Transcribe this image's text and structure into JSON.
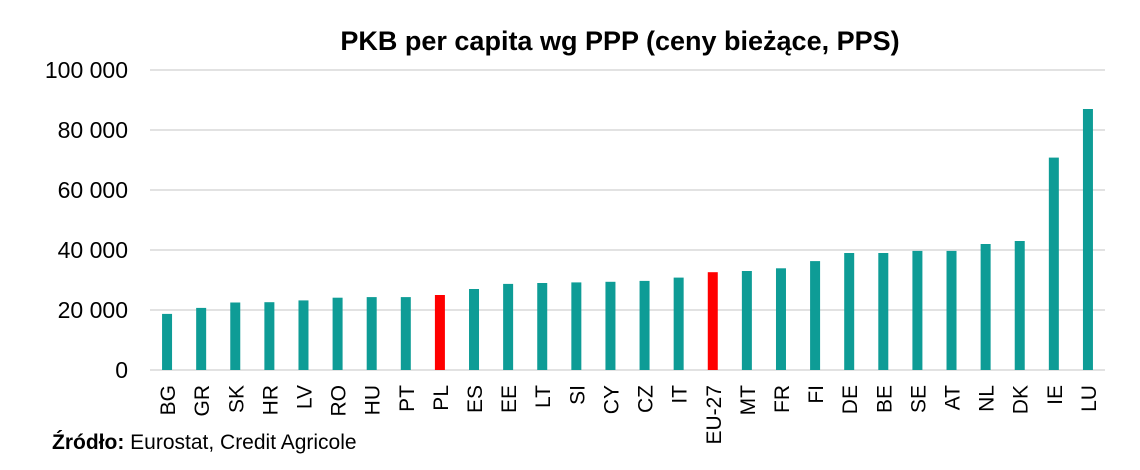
{
  "chart_data": {
    "type": "bar",
    "title": "PKB per capita wg PPP (ceny bieżące, PPS)",
    "xlabel": "",
    "ylabel": "",
    "ylim": [
      0,
      100000
    ],
    "yticks": [
      0,
      20000,
      40000,
      60000,
      80000,
      100000
    ],
    "ytick_labels": [
      "0",
      "20 000",
      "40 000",
      "60 000",
      "80 000",
      "100 000"
    ],
    "grid": true,
    "legend": "none",
    "categories": [
      "BG",
      "GR",
      "SK",
      "HR",
      "LV",
      "RO",
      "HU",
      "PT",
      "PL",
      "ES",
      "EE",
      "LT",
      "SI",
      "CY",
      "CZ",
      "IT",
      "EU-27",
      "MT",
      "FR",
      "FI",
      "DE",
      "BE",
      "SE",
      "AT",
      "NL",
      "DK",
      "IE",
      "LU"
    ],
    "values": [
      18700,
      20700,
      22500,
      22600,
      23200,
      24100,
      24300,
      24300,
      25000,
      27000,
      28700,
      29000,
      29200,
      29400,
      29700,
      30800,
      32600,
      33000,
      33900,
      36300,
      39000,
      39000,
      39700,
      39700,
      42000,
      43000,
      70800,
      87000
    ],
    "highlighted_categories": [
      "PL",
      "EU-27"
    ],
    "colors": {
      "bar": "#0E9C96",
      "highlight": "#FF0000",
      "grid": "#D9D9D9"
    }
  },
  "source": {
    "label": "Źródło:",
    "text": " Eurostat, Credit Agricole"
  }
}
